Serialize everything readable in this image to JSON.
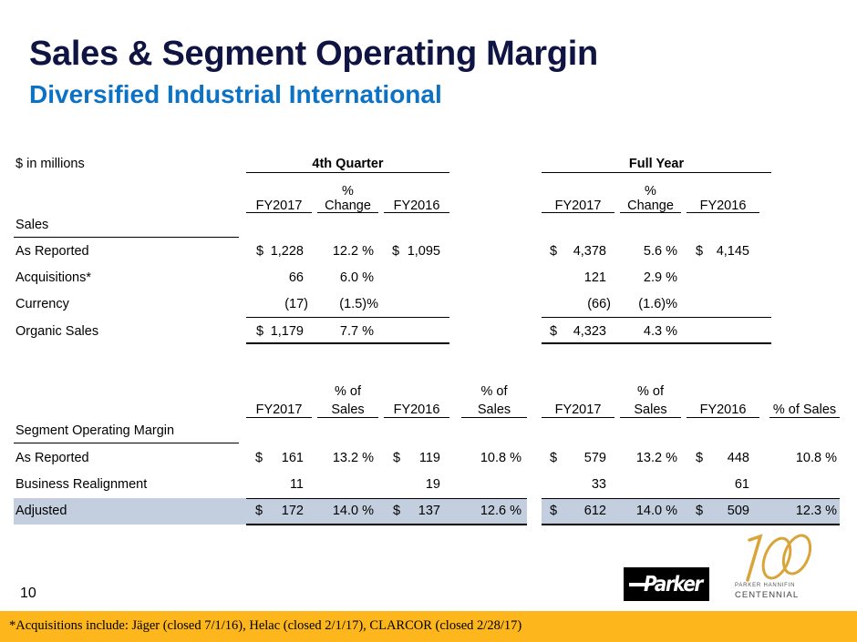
{
  "title": "Sales & Segment Operating Margin",
  "subtitle": "Diversified Industrial International",
  "units_label": "$  in millions",
  "groups": {
    "quarter": "4th  Quarter",
    "full_year": "Full Year"
  },
  "sales_table": {
    "headers": {
      "q_fy2017": "FY2017",
      "q_change_top": "%",
      "q_change_bottom": "Change",
      "q_fy2016": "FY2016",
      "fy_fy2017": "FY2017",
      "fy_change_top": "%",
      "fy_change_bottom": "Change",
      "fy_fy2016": "FY2016"
    },
    "section_label": "Sales",
    "rows": [
      {
        "label": "As Reported",
        "q_fy2017_cur": "$",
        "q_fy2017": "1,228",
        "q_change": "12.2 %",
        "q_fy2016_cur": "$",
        "q_fy2016": "1,095",
        "fy_fy2017_cur": "$",
        "fy_fy2017": "4,378",
        "fy_change": "5.6 %",
        "fy_fy2016_cur": "$",
        "fy_fy2016": "4,145"
      },
      {
        "label": "Acquisitions*",
        "q_fy2017": "66",
        "q_change": "6.0 %",
        "fy_fy2017": "121",
        "fy_change": "2.9 %"
      },
      {
        "label": "Currency",
        "q_fy2017": "(17)",
        "q_change": "(1.5)%",
        "fy_fy2017": "(66)",
        "fy_change": "(1.6)%"
      },
      {
        "label": "Organic Sales",
        "q_fy2017_cur": "$",
        "q_fy2017": "1,179",
        "q_change": "7.7 %",
        "fy_fy2017_cur": "$",
        "fy_fy2017": "4,323",
        "fy_change": "4.3 %"
      }
    ]
  },
  "margin_table": {
    "headers": {
      "q_fy2017": "FY2017",
      "q_pct1_top": "% of",
      "q_pct1_bottom": "Sales",
      "q_fy2016": "FY2016",
      "q_pct2_top": "% of",
      "q_pct2_bottom": "Sales",
      "fy_fy2017": "FY2017",
      "fy_pct1_top": "% of",
      "fy_pct1_bottom": "Sales",
      "fy_fy2016": "FY2016",
      "fy_pct2": "% of Sales"
    },
    "section_label": "Segment Operating Margin",
    "rows": [
      {
        "label": "As Reported",
        "q_fy2017_cur": "$",
        "q_fy2017": "161",
        "q_pct1": "13.2 %",
        "q_fy2016_cur": "$",
        "q_fy2016": "119",
        "q_pct2": "10.8 %",
        "fy_fy2017_cur": "$",
        "fy_fy2017": "579",
        "fy_pct1": "13.2 %",
        "fy_fy2016_cur": "$",
        "fy_fy2016": "448",
        "fy_pct2": "10.8 %"
      },
      {
        "label": "Business Realignment",
        "q_fy2017": "11",
        "q_fy2016": "19",
        "fy_fy2017": "33",
        "fy_fy2016": "61"
      },
      {
        "label": "Adjusted",
        "q_fy2017_cur": "$",
        "q_fy2017": "172",
        "q_pct1": "14.0 %",
        "q_fy2016_cur": "$",
        "q_fy2016": "137",
        "q_pct2": "12.6 %",
        "fy_fy2017_cur": "$",
        "fy_fy2017": "612",
        "fy_pct1": "14.0 %",
        "fy_fy2016_cur": "$",
        "fy_fy2016": "509",
        "fy_pct2": "12.3 %"
      }
    ]
  },
  "page_number": "10",
  "logos": {
    "parker": "Parker",
    "centennial_number": "100",
    "centennial_line1": "PARKER HANNIFIN",
    "centennial_line2": "CENTENNIAL"
  },
  "footnote": "*Acquisitions include: Jäger (closed 7/1/16), Helac (closed 2/1/17), CLARCOR (closed 2/28/17)",
  "colors": {
    "title": "#0f1443",
    "subtitle": "#0b72c6",
    "highlight_band": "#c3cfdf",
    "footer_bar": "#fdb71c",
    "centennial_gold": "#d9a53a"
  }
}
